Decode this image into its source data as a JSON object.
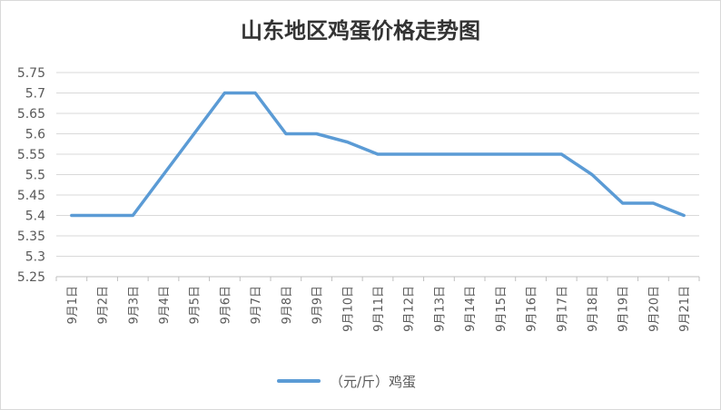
{
  "chart_data": {
    "type": "line",
    "title": "山东地区鸡蛋价格走势图",
    "categories": [
      "9月1日",
      "9月2日",
      "9月3日",
      "9月4日",
      "9月5日",
      "9月6日",
      "9月7日",
      "9月8日",
      "9月9日",
      "9月10日",
      "9月11日",
      "9月12日",
      "9月13日",
      "9月14日",
      "9月15日",
      "9月16日",
      "9月17日",
      "9月18日",
      "9月19日",
      "9月20日",
      "9月21日"
    ],
    "series": [
      {
        "name": "（元/斤）鸡蛋",
        "values": [
          5.4,
          5.4,
          5.4,
          5.5,
          5.6,
          5.7,
          5.7,
          5.6,
          5.6,
          5.58,
          5.55,
          5.55,
          5.55,
          5.55,
          5.55,
          5.55,
          5.55,
          5.5,
          5.43,
          5.43,
          5.4
        ]
      }
    ],
    "ylim": [
      5.25,
      5.75
    ],
    "yticks": [
      "5.25",
      "5.3",
      "5.35",
      "5.4",
      "5.45",
      "5.5",
      "5.55",
      "5.6",
      "5.65",
      "5.7",
      "5.75"
    ],
    "grid": true,
    "legend_position": "bottom",
    "colors": {
      "series": "#5b9bd5",
      "grid": "#d9d9d9"
    }
  }
}
